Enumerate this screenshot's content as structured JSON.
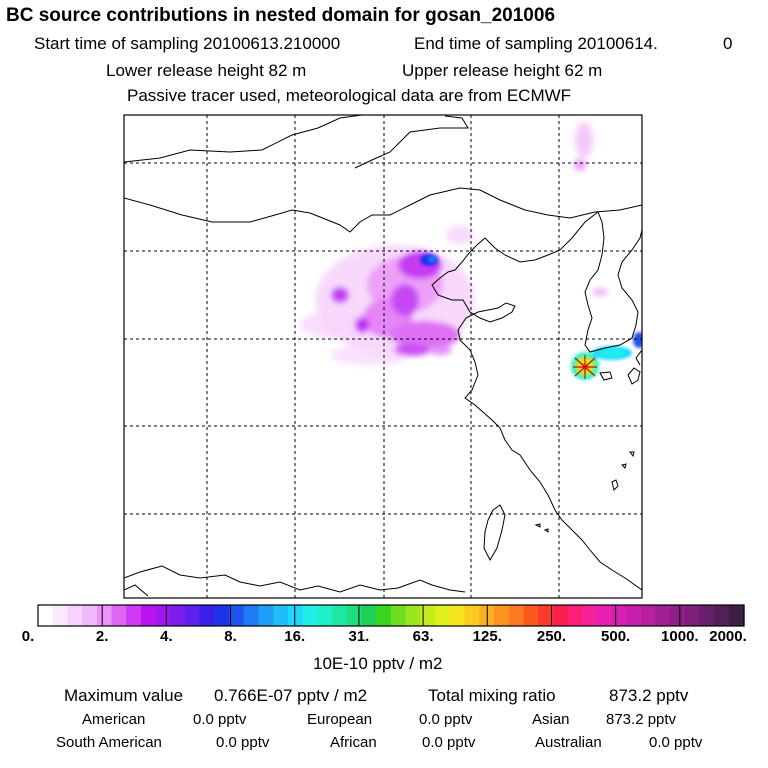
{
  "header": {
    "title": "BC  source contributions in nested domain for gosan_201006",
    "start_label": "Start time of sampling 20100613.210000",
    "end_label": "End time of sampling 20100614.",
    "end_value": "0",
    "lower_release": "Lower release height   82 m",
    "upper_release": "Upper release height   62 m",
    "note": "Passive tracer used, meteorological data are from ECMWF"
  },
  "colorbar": {
    "ticks": [
      "0.",
      "2.",
      "4.",
      "8.",
      "16.",
      "31.",
      "63.",
      "125.",
      "250.",
      "500.",
      "1000.",
      "2000."
    ],
    "colors": [
      "#ffffff",
      "#fbe9fd",
      "#f8d2fc",
      "#f3b8fb",
      "#eb94f8",
      "#dd66f5",
      "#cf39f3",
      "#bb12f1",
      "#9e17ef",
      "#7d1cee",
      "#5d1feb",
      "#3920e8",
      "#1f33e6",
      "#1f55ee",
      "#1f7bf5",
      "#1f9ef8",
      "#1fbefa",
      "#1fd8fb",
      "#1fefe8",
      "#1fefc7",
      "#1fe8a2",
      "#1fde7c",
      "#1fd055",
      "#3ad51f",
      "#6fde1f",
      "#9be61f",
      "#c3ec1f",
      "#e2ef1f",
      "#f5e51f",
      "#fbcb1f",
      "#fbb01f",
      "#fb951f",
      "#fb7a1f",
      "#fb5a1f",
      "#fb3a2a",
      "#fb1f4c",
      "#fb1f76",
      "#f51f98",
      "#e81fb0",
      "#d81fb4",
      "#c61fab",
      "#b51fa0",
      "#a11f93",
      "#8e1f86",
      "#7b1f78",
      "#661f68",
      "#521f56",
      "#3e1f45"
    ],
    "units": "10E-10 pptv / m2"
  },
  "summary": {
    "maximum_label": "Maximum value",
    "maximum_value": "0.766E-07 pptv / m2",
    "total_label": "Total mixing ratio",
    "total_value": "873.2 pptv",
    "regions": [
      {
        "name": "American",
        "value": "0.0 pptv"
      },
      {
        "name": "European",
        "value": "0.0 pptv"
      },
      {
        "name": "Asian",
        "value": "873.2 pptv"
      },
      {
        "name": "South American",
        "value": "0.0 pptv"
      },
      {
        "name": "African",
        "value": "0.0 pptv"
      },
      {
        "name": "Australian",
        "value": "0.0 pptv"
      }
    ]
  }
}
